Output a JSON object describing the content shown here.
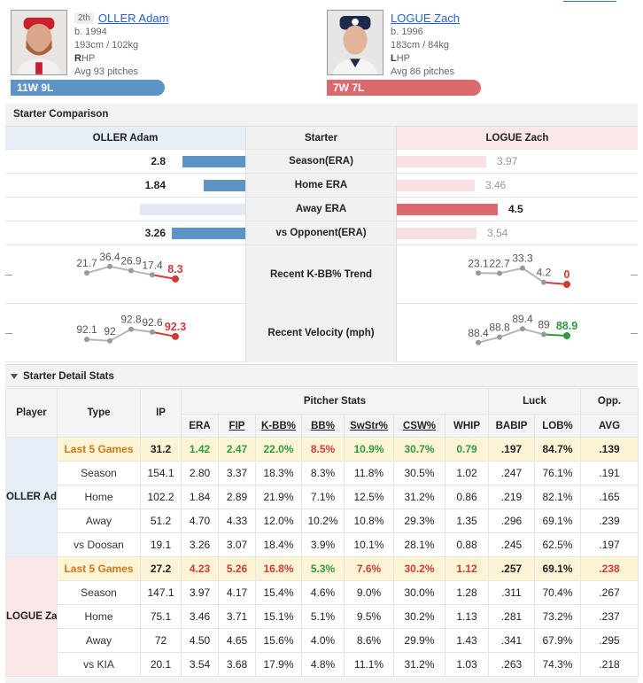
{
  "players": {
    "left": {
      "rank": "2th",
      "name": "OLLER Adam",
      "born": "b. 1994",
      "size": "193cm / 102kg",
      "hand_letter": "R",
      "hand_rest": "HP",
      "avg_pitches": "Avg 93 pitches",
      "record": "11W 9L"
    },
    "right": {
      "name": "LOGUE Zach",
      "born": "b. 1996",
      "size": "183cm / 84kg",
      "hand_letter": "L",
      "hand_rest": "HP",
      "avg_pitches": "Avg 86 pitches",
      "record": "7W 7L"
    }
  },
  "comparison": {
    "title": "Starter Comparison",
    "left_header": "OLLER Adam",
    "mid_header": "Starter",
    "right_header": "LOGUE Zach",
    "rows": [
      {
        "label": "Season(ERA)",
        "left": "2.8",
        "right": "3.97",
        "better": "left",
        "left_val": 2.8,
        "right_val": 3.97
      },
      {
        "label": "Home ERA",
        "left": "1.84",
        "right": "3.46",
        "better": "left",
        "left_val": 1.84,
        "right_val": 3.46
      },
      {
        "label": "Away ERA",
        "left": "4.7",
        "right": "4.5",
        "better": "right",
        "left_val": 4.7,
        "right_val": 4.5
      },
      {
        "label": "vs Opponent(ERA)",
        "left": "3.26",
        "right": "3.54",
        "better": "left",
        "left_val": 3.26,
        "right_val": 3.54
      }
    ],
    "kbb_label": "Recent K-BB% Trend",
    "kbb_left": [
      "21.7",
      "36.4",
      "26.9",
      "17.4",
      "8.3"
    ],
    "kbb_right": [
      "23.1",
      "22.7",
      "33.3",
      "4.2",
      "0"
    ],
    "vel_label": "Recent Velocity (mph)",
    "vel_left": [
      "92.1",
      "92",
      "92.8",
      "92.6",
      "92.3"
    ],
    "vel_right": [
      "88.4",
      "88.8",
      "89.4",
      "89",
      "88.9"
    ],
    "colors": {
      "blue": "#5e93c5",
      "red": "#db6a6e",
      "trend_down": "#d03a3a",
      "trend_up": "#2f9b3e",
      "grey": "#999999"
    }
  },
  "detail": {
    "title": "Starter Detail Stats",
    "headers": {
      "player": "Player",
      "type": "Type",
      "ip": "IP",
      "pitcher_stats": "Pitcher Stats",
      "luck": "Luck",
      "opp": "Opp.",
      "cols": [
        "ERA",
        "FIP",
        "K-BB%",
        "BB%",
        "SwStr%",
        "CSW%",
        "WHIP",
        "BABIP",
        "LOB%",
        "AVG"
      ]
    },
    "groups": [
      {
        "player": "OLLER Adam",
        "rows": [
          {
            "type": "Last 5 Games",
            "ip": "31.2",
            "vals": [
              "1.42",
              "2.47",
              "22.0%",
              "8.5%",
              "10.9%",
              "30.7%",
              "0.79",
              ".197",
              "84.7%",
              ".139"
            ],
            "colors": [
              "g",
              "g",
              "g",
              "r",
              "g",
              "g",
              "g",
              "",
              "",
              ""
            ]
          },
          {
            "type": "Season",
            "ip": "154.1",
            "vals": [
              "2.80",
              "3.37",
              "18.3%",
              "8.3%",
              "11.8%",
              "30.5%",
              "1.02",
              ".247",
              "76.1%",
              ".191"
            ]
          },
          {
            "type": "Home",
            "ip": "102.2",
            "vals": [
              "1.84",
              "2.89",
              "21.9%",
              "7.1%",
              "12.5%",
              "31.2%",
              "0.86",
              ".219",
              "82.1%",
              ".165"
            ]
          },
          {
            "type": "Away",
            "ip": "51.2",
            "vals": [
              "4.70",
              "4.33",
              "12.0%",
              "10.2%",
              "10.8%",
              "29.3%",
              "1.35",
              ".296",
              "69.1%",
              ".239"
            ]
          },
          {
            "type": "vs Doosan",
            "ip": "19.1",
            "vals": [
              "3.26",
              "3.07",
              "18.4%",
              "3.9%",
              "10.1%",
              "28.1%",
              "0.88",
              ".245",
              "62.5%",
              ".197"
            ]
          }
        ]
      },
      {
        "player": "LOGUE Zach",
        "rows": [
          {
            "type": "Last 5 Games",
            "ip": "27.2",
            "vals": [
              "4.23",
              "5.26",
              "16.8%",
              "5.3%",
              "7.6%",
              "30.2%",
              "1.12",
              ".257",
              "69.1%",
              ".238"
            ],
            "colors": [
              "r",
              "r",
              "r",
              "g",
              "r",
              "r",
              "r",
              "",
              "",
              "r"
            ]
          },
          {
            "type": "Season",
            "ip": "147.1",
            "vals": [
              "3.97",
              "4.17",
              "15.4%",
              "4.6%",
              "9.0%",
              "30.0%",
              "1.28",
              ".311",
              "70.4%",
              ".267"
            ]
          },
          {
            "type": "Home",
            "ip": "75.1",
            "vals": [
              "3.46",
              "3.71",
              "15.1%",
              "5.1%",
              "9.5%",
              "30.2%",
              "1.13",
              ".281",
              "73.2%",
              ".237"
            ]
          },
          {
            "type": "Away",
            "ip": "72",
            "vals": [
              "4.50",
              "4.65",
              "15.6%",
              "4.0%",
              "8.6%",
              "29.9%",
              "1.43",
              ".341",
              "67.9%",
              ".295"
            ]
          },
          {
            "type": "vs KIA",
            "ip": "20.1",
            "vals": [
              "3.54",
              "3.68",
              "17.9%",
              "4.8%",
              "11.1%",
              "31.2%",
              "1.03",
              ".263",
              "74.3%",
              ".218"
            ]
          }
        ]
      }
    ]
  }
}
